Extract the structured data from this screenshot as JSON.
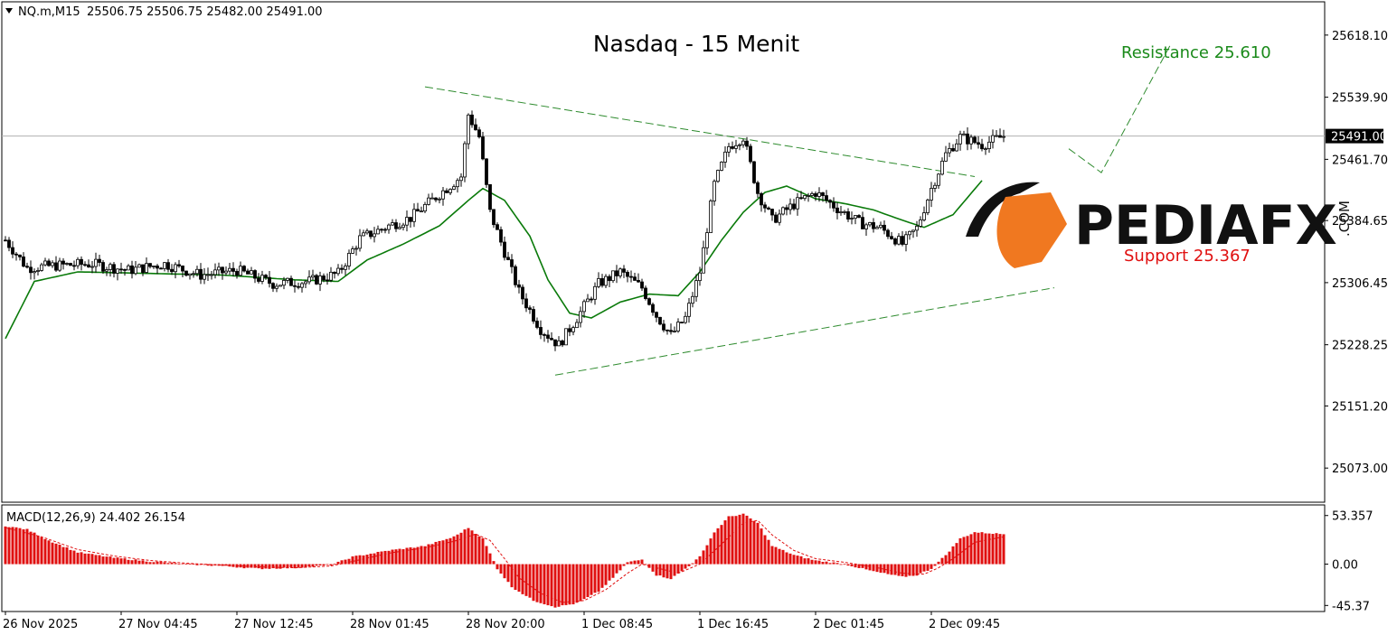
{
  "header": {
    "symbol": "NQ.m,M15",
    "ohlc": "25506.75 25506.75 25482.00 25491.00"
  },
  "macd_header": "MACD(12,26,9) 24.402 26.154",
  "annotations": {
    "title": "Nasdaq - 15 Menit",
    "resistance": "Resistance 25.610",
    "support": "Support 25.367"
  },
  "logo": {
    "name": "PEDIAFX",
    "suffix": ".COM"
  },
  "colors": {
    "candle": "#000000",
    "ma": "#0a7a0a",
    "trendline": "#2e8b2e",
    "macd_hist": "#e01010",
    "signal": "#e01010",
    "price_line": "#b0b0b0",
    "logo_orange": "#f07820"
  },
  "chart_data": [
    {
      "type": "candlestick",
      "title": "Nasdaq - 15 Menit",
      "current_price": 25491.0,
      "current_price_label": "25491.00",
      "ylim": [
        25030,
        25660
      ],
      "y_ticks": [
        {
          "value": 25618.1,
          "label": "25618.10"
        },
        {
          "value": 25539.9,
          "label": "25539.90"
        },
        {
          "value": 25461.7,
          "label": "25461.70"
        },
        {
          "value": 25384.65,
          "label": "25384.65"
        },
        {
          "value": 25306.45,
          "label": "25306.45"
        },
        {
          "value": 25228.25,
          "label": "25228.25"
        },
        {
          "value": 25151.2,
          "label": "25151.20"
        },
        {
          "value": 25073.0,
          "label": "25073.00"
        }
      ],
      "x_ticks": [
        {
          "index": 0,
          "label": "26 Nov 2025"
        },
        {
          "index": 32,
          "label": "27 Nov 04:45"
        },
        {
          "index": 64,
          "label": "27 Nov 12:45"
        },
        {
          "index": 96,
          "label": "28 Nov 01:45"
        },
        {
          "index": 128,
          "label": "28 Nov 20:00"
        },
        {
          "index": 160,
          "label": "1 Dec 08:45"
        },
        {
          "index": 192,
          "label": "1 Dec 16:45"
        },
        {
          "index": 224,
          "label": "2 Dec 01:45"
        },
        {
          "index": 256,
          "label": "2 Dec 09:45"
        }
      ],
      "anchors": [
        [
          0,
          25360
        ],
        [
          6,
          25325
        ],
        [
          14,
          25328
        ],
        [
          24,
          25330
        ],
        [
          34,
          25322
        ],
        [
          44,
          25330
        ],
        [
          54,
          25316
        ],
        [
          64,
          25322
        ],
        [
          74,
          25305
        ],
        [
          84,
          25308
        ],
        [
          92,
          25318
        ],
        [
          98,
          25362
        ],
        [
          106,
          25378
        ],
        [
          112,
          25388
        ],
        [
          120,
          25418
        ],
        [
          126,
          25440
        ],
        [
          128,
          25518
        ],
        [
          131,
          25490
        ],
        [
          134,
          25395
        ],
        [
          138,
          25345
        ],
        [
          142,
          25295
        ],
        [
          148,
          25248
        ],
        [
          153,
          25228
        ],
        [
          158,
          25262
        ],
        [
          164,
          25305
        ],
        [
          170,
          25320
        ],
        [
          176,
          25300
        ],
        [
          180,
          25265
        ],
        [
          184,
          25240
        ],
        [
          188,
          25262
        ],
        [
          192,
          25320
        ],
        [
          196,
          25430
        ],
        [
          200,
          25478
        ],
        [
          204,
          25490
        ],
        [
          208,
          25420
        ],
        [
          212,
          25385
        ],
        [
          218,
          25405
        ],
        [
          224,
          25420
        ],
        [
          230,
          25400
        ],
        [
          236,
          25382
        ],
        [
          242,
          25375
        ],
        [
          248,
          25355
        ],
        [
          252,
          25375
        ],
        [
          256,
          25425
        ],
        [
          260,
          25468
        ],
        [
          264,
          25490
        ],
        [
          270,
          25480
        ],
        [
          276,
          25491
        ]
      ],
      "ma_anchors": [
        [
          0,
          25236
        ],
        [
          8,
          25308
        ],
        [
          20,
          25320
        ],
        [
          40,
          25318
        ],
        [
          60,
          25316
        ],
        [
          80,
          25310
        ],
        [
          92,
          25308
        ],
        [
          100,
          25335
        ],
        [
          110,
          25355
        ],
        [
          120,
          25378
        ],
        [
          128,
          25410
        ],
        [
          132,
          25425
        ],
        [
          138,
          25410
        ],
        [
          145,
          25365
        ],
        [
          150,
          25310
        ],
        [
          156,
          25268
        ],
        [
          162,
          25262
        ],
        [
          170,
          25282
        ],
        [
          178,
          25292
        ],
        [
          186,
          25290
        ],
        [
          192,
          25320
        ],
        [
          198,
          25360
        ],
        [
          204,
          25395
        ],
        [
          210,
          25420
        ],
        [
          216,
          25428
        ],
        [
          224,
          25412
        ],
        [
          232,
          25406
        ],
        [
          240,
          25398
        ],
        [
          248,
          25385
        ],
        [
          254,
          25376
        ],
        [
          262,
          25392
        ],
        [
          270,
          25435
        ]
      ],
      "trendlines": [
        {
          "from": [
            116,
            25553
          ],
          "to": [
            268,
            25440
          ]
        },
        {
          "from": [
            152,
            25190
          ],
          "to": [
            290,
            25300
          ]
        }
      ],
      "projection": [
        [
          294,
          25475
        ],
        [
          303,
          25445
        ],
        [
          322,
          25605
        ]
      ]
    },
    {
      "type": "macd",
      "title": "MACD(12,26,9) 24.402 26.154",
      "ylim": [
        -52,
        65
      ],
      "y_ticks": [
        {
          "value": 53.357,
          "label": "53.357"
        },
        {
          "value": 0.0,
          "label": "0.00"
        },
        {
          "value": -45.37,
          "label": "-45.37"
        }
      ],
      "hist_anchors": [
        [
          0,
          42
        ],
        [
          6,
          38
        ],
        [
          12,
          26
        ],
        [
          20,
          13
        ],
        [
          30,
          7
        ],
        [
          40,
          3
        ],
        [
          50,
          0
        ],
        [
          60,
          -2
        ],
        [
          70,
          -5
        ],
        [
          80,
          -4
        ],
        [
          90,
          -1
        ],
        [
          96,
          8
        ],
        [
          106,
          15
        ],
        [
          116,
          20
        ],
        [
          124,
          30
        ],
        [
          128,
          40
        ],
        [
          132,
          28
        ],
        [
          136,
          -5
        ],
        [
          140,
          -25
        ],
        [
          146,
          -40
        ],
        [
          152,
          -47
        ],
        [
          158,
          -43
        ],
        [
          164,
          -30
        ],
        [
          168,
          -15
        ],
        [
          172,
          2
        ],
        [
          176,
          5
        ],
        [
          180,
          -12
        ],
        [
          184,
          -16
        ],
        [
          188,
          -5
        ],
        [
          192,
          8
        ],
        [
          196,
          35
        ],
        [
          200,
          52
        ],
        [
          204,
          55
        ],
        [
          208,
          45
        ],
        [
          212,
          20
        ],
        [
          218,
          10
        ],
        [
          224,
          4
        ],
        [
          232,
          0
        ],
        [
          240,
          -8
        ],
        [
          248,
          -14
        ],
        [
          252,
          -12
        ],
        [
          256,
          -5
        ],
        [
          260,
          10
        ],
        [
          264,
          28
        ],
        [
          268,
          35
        ],
        [
          276,
          33
        ]
      ],
      "signal_anchors": [
        [
          0,
          40
        ],
        [
          10,
          30
        ],
        [
          20,
          16
        ],
        [
          30,
          9
        ],
        [
          40,
          4
        ],
        [
          50,
          1
        ],
        [
          60,
          -1
        ],
        [
          70,
          -3
        ],
        [
          80,
          -4
        ],
        [
          90,
          -2
        ],
        [
          96,
          3
        ],
        [
          106,
          12
        ],
        [
          116,
          18
        ],
        [
          124,
          25
        ],
        [
          130,
          33
        ],
        [
          134,
          26
        ],
        [
          138,
          6
        ],
        [
          142,
          -15
        ],
        [
          148,
          -32
        ],
        [
          154,
          -42
        ],
        [
          160,
          -40
        ],
        [
          166,
          -28
        ],
        [
          172,
          -10
        ],
        [
          176,
          0
        ],
        [
          180,
          -4
        ],
        [
          186,
          -10
        ],
        [
          192,
          0
        ],
        [
          198,
          22
        ],
        [
          204,
          45
        ],
        [
          208,
          48
        ],
        [
          212,
          32
        ],
        [
          218,
          15
        ],
        [
          224,
          6
        ],
        [
          232,
          2
        ],
        [
          240,
          -3
        ],
        [
          248,
          -10
        ],
        [
          254,
          -11
        ],
        [
          258,
          -4
        ],
        [
          262,
          6
        ],
        [
          268,
          24
        ],
        [
          276,
          30
        ]
      ]
    }
  ]
}
